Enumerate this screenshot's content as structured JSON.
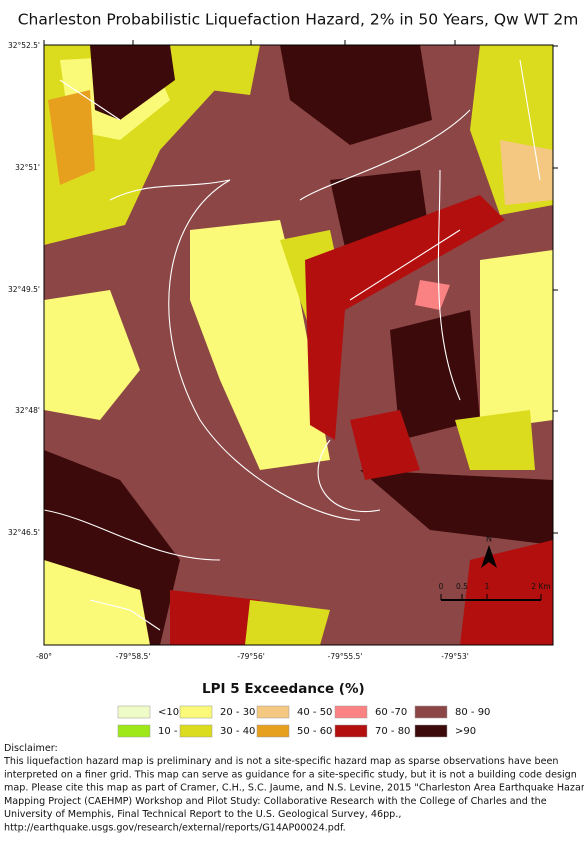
{
  "title": "Charleston Probabilistic Liquefaction Hazard, 2% in 50 Years, Qw WT 2m",
  "map": {
    "lat_labels": [
      "32°52.5'",
      "32°51'",
      "32°49.5'",
      "32°48'",
      "32°46.5'"
    ],
    "lon_labels": [
      "-80°",
      "-79°58.5'",
      "-79°56'",
      "-79°55.5'",
      "-79°53'"
    ],
    "north": "N",
    "scale_labels": [
      "0",
      "0.5",
      "1",
      "2 Km"
    ]
  },
  "legend": {
    "title": "LPI 5 Exceedance (%)",
    "items": [
      {
        "label": "<10",
        "color": "#f0fcc8"
      },
      {
        "label": "10 - 20",
        "color": "#9ee81a"
      },
      {
        "label": "20 - 30",
        "color": "#fafa78"
      },
      {
        "label": "30 - 40",
        "color": "#dcdc1e"
      },
      {
        "label": "40 - 50",
        "color": "#f5c882"
      },
      {
        "label": "50 - 60",
        "color": "#e6a01e"
      },
      {
        "label": "60 -70",
        "color": "#fa8282"
      },
      {
        "label": "70 - 80",
        "color": "#b40f0f"
      },
      {
        "label": "80 - 90",
        "color": "#8c4646"
      },
      {
        "label": ">90",
        "color": "#3c0a0a"
      }
    ]
  },
  "disclaimer": {
    "heading": "Disclaimer:",
    "lines": [
      "This liquefaction  hazard map is preliminary and is not a site-specific hazard map as sparse observations have been",
      "interpreted on a finer grid. This map can serve as guidance for a site-specific study, but it is not a building code design",
      "map. Please cite this map as part of Cramer, C.H., S.C. Jaume, and N.S. Levine, 2015 \"Charleston Area Earthquake Hazard",
      "Mapping Project (CAEHMP) Workshop and Pilot Study: Collaborative Research with the College of Charles and the",
      "University of Memphis, Final Technical Report to the U.S. Geological Survey, 46pp.,",
      "http://earthquake.usgs.gov/research/external/reports/G14AP00024.pdf."
    ]
  }
}
